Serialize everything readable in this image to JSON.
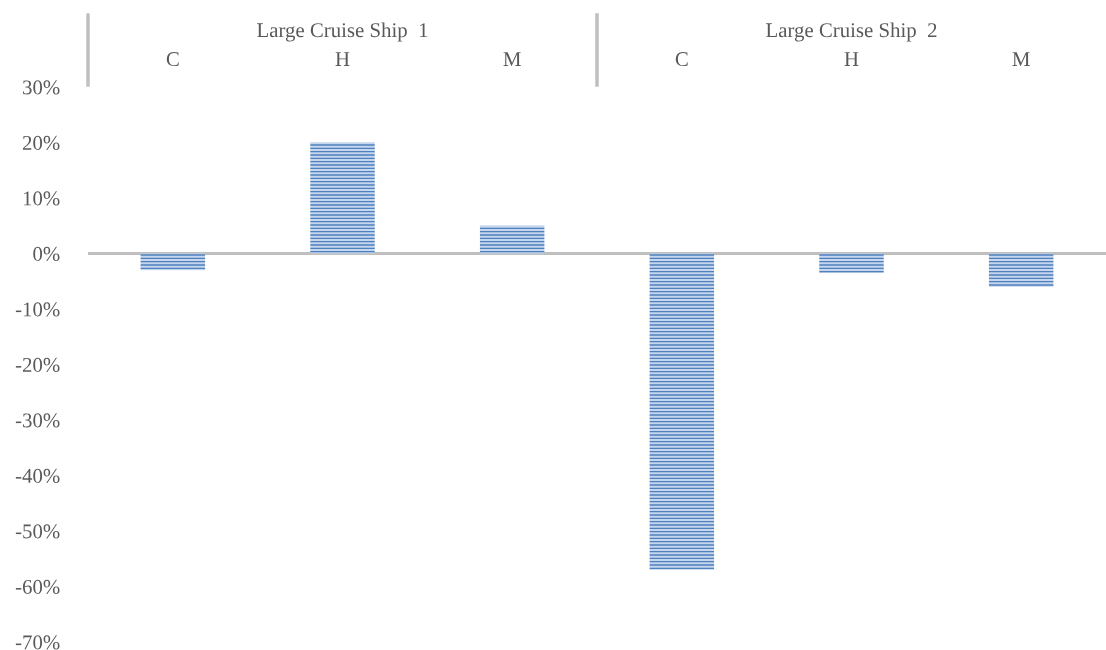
{
  "chart_data": {
    "type": "bar",
    "categories": [
      "C",
      "H",
      "M",
      "C",
      "H",
      "M"
    ],
    "values": [
      -3,
      20,
      5,
      -57,
      -3.5,
      -6
    ],
    "color": "#4f81bd",
    "ylim": [
      -70,
      30
    ],
    "yticks": [
      {
        "value": -70,
        "label": "-70%"
      },
      {
        "value": -60,
        "label": "-60%"
      },
      {
        "value": -50,
        "label": "-50%"
      },
      {
        "value": -40,
        "label": "-40%"
      },
      {
        "value": -30,
        "label": "-30%"
      },
      {
        "value": -20,
        "label": "-20%"
      },
      {
        "value": -10,
        "label": "-10%"
      },
      {
        "value": 0,
        "label": "0%"
      },
      {
        "value": 10,
        "label": "10%"
      },
      {
        "value": 20,
        "label": "20%"
      },
      {
        "value": 30,
        "label": "30%"
      }
    ],
    "annotations": [
      "Large Cruise Ship  1",
      "Large Cruise Ship  2"
    ],
    "ref_lines": [
      {
        "axis": "y",
        "value": 0,
        "color": "#bfbfbf"
      }
    ],
    "grid": false,
    "legend": false
  }
}
